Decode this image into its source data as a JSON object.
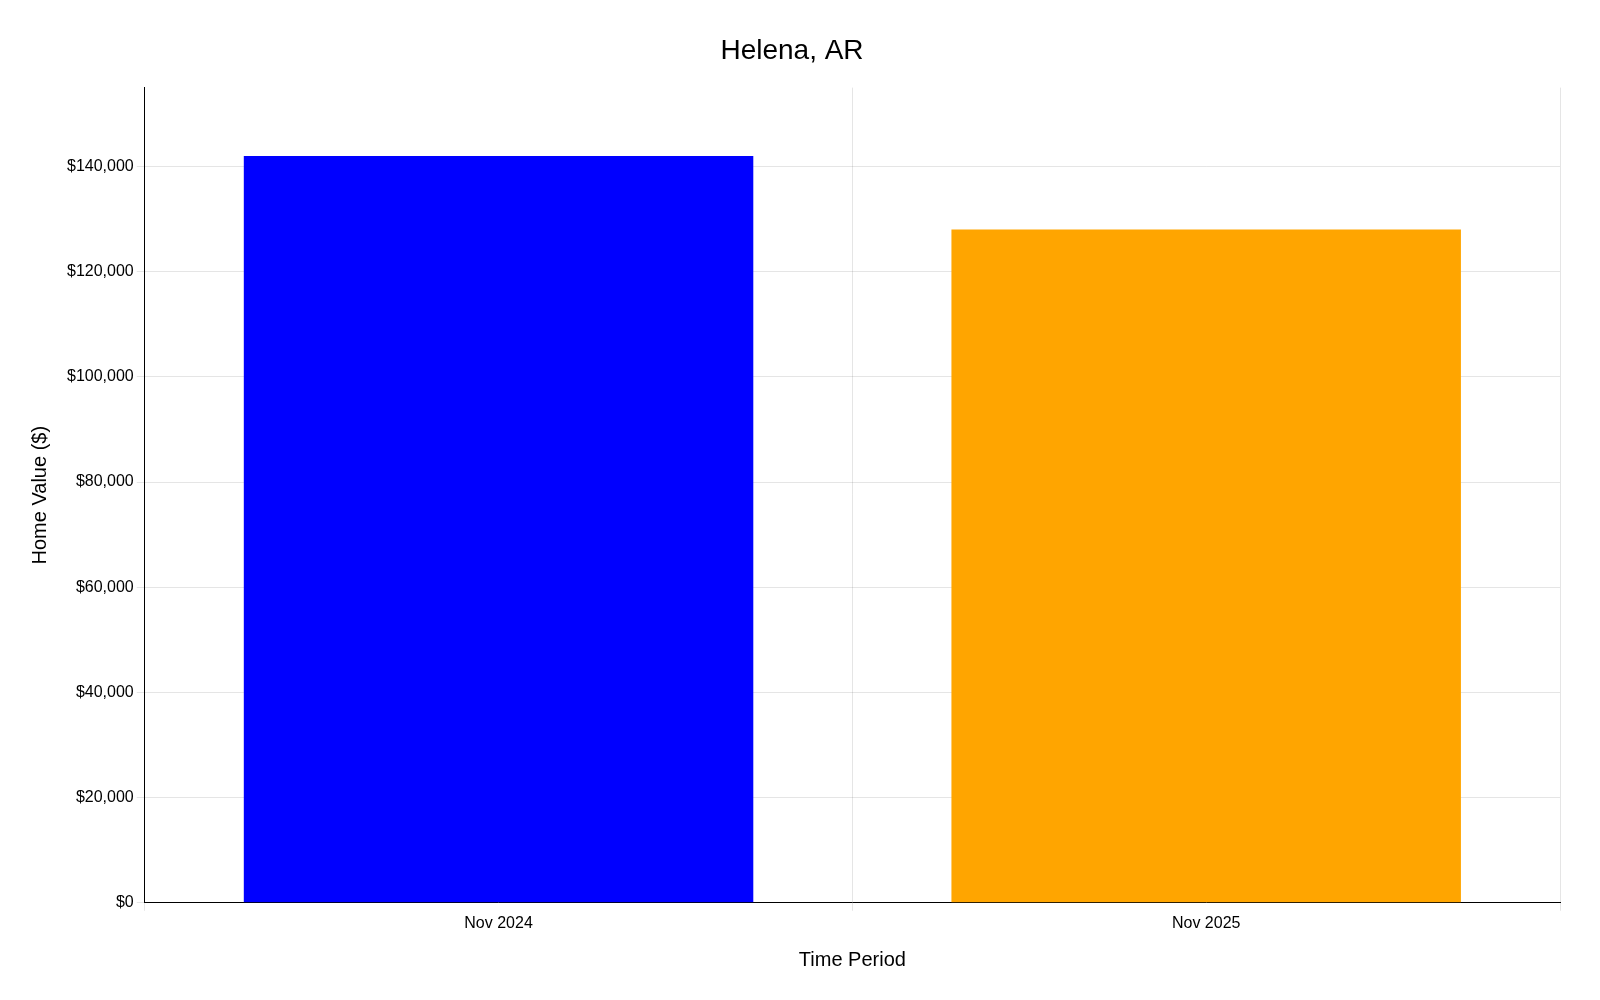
{
  "chart_data": {
    "type": "bar",
    "title": "Helena, AR",
    "categories": [
      "Nov 2024",
      "Nov 2025"
    ],
    "values": [
      142000,
      128000
    ],
    "colors": [
      "#0000FF",
      "#FFA500"
    ],
    "xlabel": "Time Period",
    "ylabel": "Home Value ($)",
    "ylim": [
      0,
      155000
    ],
    "yticks": [
      {
        "value": 0,
        "label": "$0"
      },
      {
        "value": 20000,
        "label": "$20,000"
      },
      {
        "value": 40000,
        "label": "$40,000"
      },
      {
        "value": 60000,
        "label": "$60,000"
      },
      {
        "value": 80000,
        "label": "$80,000"
      },
      {
        "value": 100000,
        "label": "$100,000"
      },
      {
        "value": 120000,
        "label": "$120,000"
      },
      {
        "value": 140000,
        "label": "$140,000"
      }
    ],
    "grid": true
  }
}
